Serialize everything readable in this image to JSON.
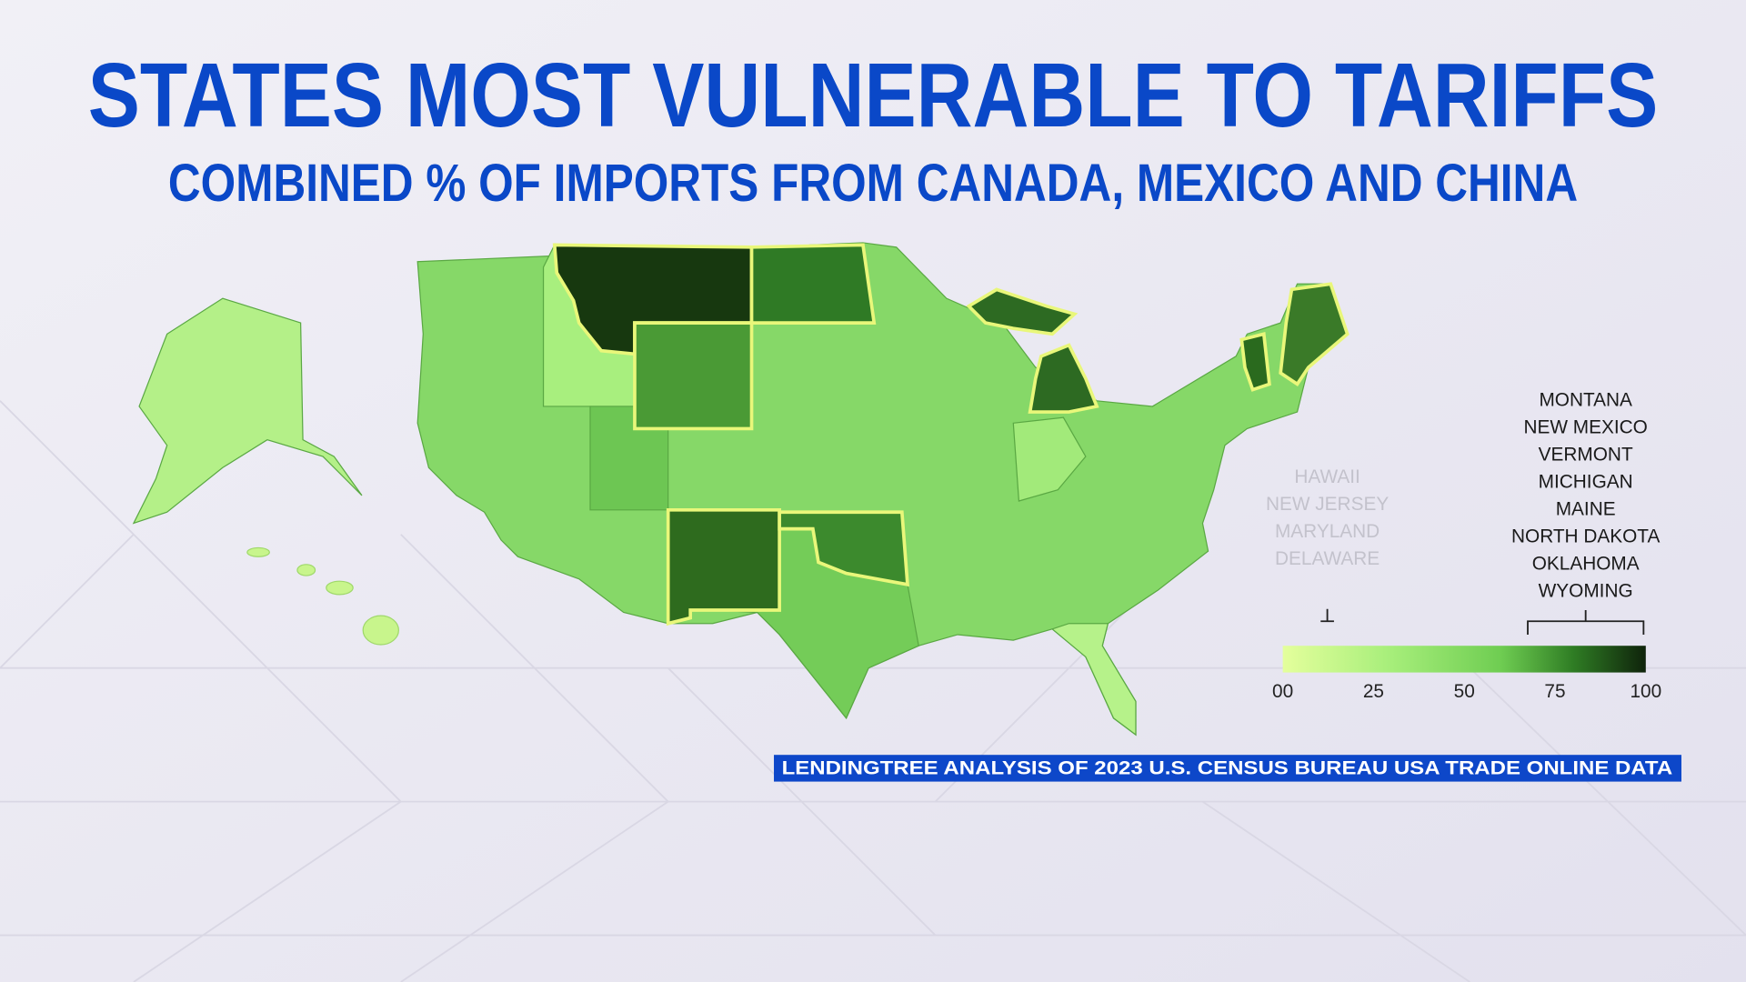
{
  "title": "STATES MOST VULNERABLE TO TARIFFS",
  "subtitle": "COMBINED % OF IMPORTS FROM CANADA, MEXICO AND CHINA",
  "legend": {
    "ticks": [
      {
        "value": 0,
        "label": "00"
      },
      25,
      50,
      75,
      100
    ],
    "lowest": [
      "HAWAII",
      "NEW JERSEY",
      "MARYLAND",
      "DELAWARE"
    ],
    "highest": [
      "MONTANA",
      "NEW MEXICO",
      "VERMONT",
      "MICHIGAN",
      "MAINE",
      "NORTH DAKOTA",
      "OKLAHOMA",
      "WYOMING"
    ]
  },
  "source": "LENDINGTREE ANALYSIS OF 2023 U.S. CENSUS BUREAU USA TRADE ONLINE DATA"
}
